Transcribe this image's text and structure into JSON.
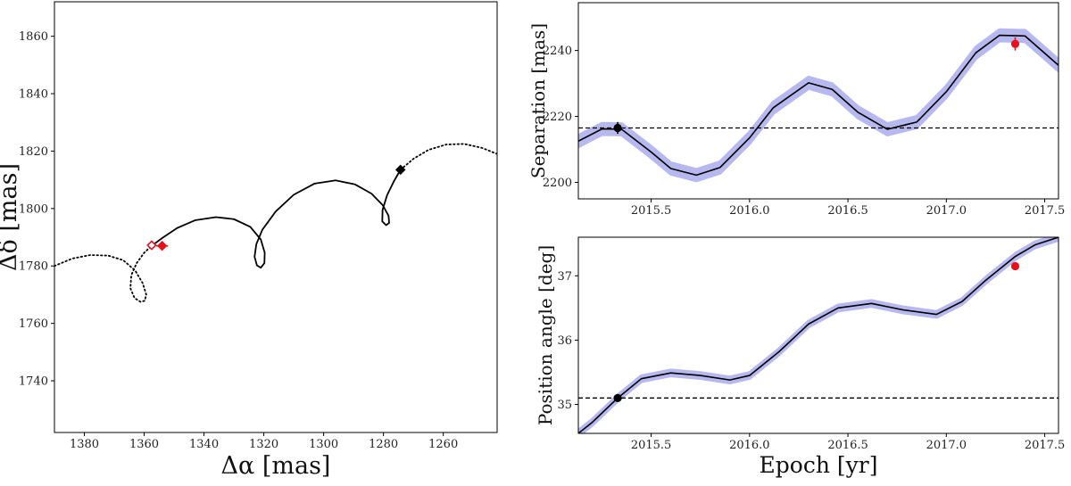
{
  "colors": {
    "obs": "#e8101a",
    "ref": "#000000",
    "band": "#b7b8ef",
    "line": "#000000"
  },
  "chart_data": [
    {
      "id": "sky",
      "type": "line",
      "title": "",
      "xlabel": "Δα [mas]",
      "ylabel": "Δδ [mas]",
      "xlim": [
        1390,
        1242
      ],
      "ylim": [
        1722,
        1872
      ],
      "xticks": [
        1380,
        1360,
        1340,
        1320,
        1300,
        1280,
        1260
      ],
      "yticks": [
        1740,
        1760,
        1780,
        1800,
        1820,
        1840,
        1860
      ],
      "series": [
        {
          "name": "past-dotted",
          "style": "dotted",
          "points": [
            [
              1390,
              1780
            ],
            [
              1384,
              1782.6
            ],
            [
              1378,
              1783.8
            ],
            [
              1372,
              1783.6
            ],
            [
              1367,
              1782
            ],
            [
              1363,
              1778.4
            ],
            [
              1360.5,
              1774
            ],
            [
              1359.3,
              1770
            ],
            [
              1359.8,
              1767.9
            ],
            [
              1361.2,
              1767.5
            ],
            [
              1363.2,
              1768.8
            ],
            [
              1364.6,
              1772.2
            ],
            [
              1364.3,
              1776.8
            ],
            [
              1362.5,
              1781
            ],
            [
              1360,
              1784.6
            ],
            [
              1357.5,
              1787
            ]
          ]
        },
        {
          "name": "fitted-orbit",
          "style": "solid",
          "points": [
            [
              1357.5,
              1787
            ],
            [
              1354,
              1789.7
            ],
            [
              1349,
              1793.2
            ],
            [
              1343,
              1795.9
            ],
            [
              1336,
              1797
            ],
            [
              1330,
              1796.3
            ],
            [
              1324.5,
              1793.6
            ],
            [
              1321,
              1789.2
            ],
            [
              1319.7,
              1784.6
            ],
            [
              1319.8,
              1781
            ],
            [
              1321,
              1779.4
            ],
            [
              1322.3,
              1780.2
            ],
            [
              1323.1,
              1783.2
            ],
            [
              1322.5,
              1787.6
            ],
            [
              1320.5,
              1792.6
            ],
            [
              1316,
              1799
            ],
            [
              1310,
              1804.8
            ],
            [
              1303,
              1808.7
            ],
            [
              1296,
              1809.8
            ],
            [
              1289.5,
              1808.4
            ],
            [
              1284,
              1805.2
            ],
            [
              1280.2,
              1801.1
            ],
            [
              1278.3,
              1797.5
            ],
            [
              1278.1,
              1795
            ],
            [
              1279.1,
              1794.2
            ],
            [
              1280.4,
              1795.5
            ],
            [
              1280.3,
              1799.5
            ],
            [
              1278.8,
              1804.6
            ],
            [
              1276.5,
              1809.5
            ],
            [
              1274.3,
              1813.5
            ]
          ]
        },
        {
          "name": "future-dotted",
          "style": "dotted",
          "points": [
            [
              1274.3,
              1813.5
            ],
            [
              1270,
              1817.3
            ],
            [
              1265,
              1820.4
            ],
            [
              1259,
              1822.3
            ],
            [
              1253,
              1822.5
            ],
            [
              1247,
              1821.1
            ],
            [
              1242,
              1819
            ]
          ]
        }
      ],
      "markers": [
        {
          "name": "red-filled",
          "x": 1354,
          "y": 1787,
          "xerr": 2,
          "yerr": 1.5,
          "color": "obs",
          "filled": true
        },
        {
          "name": "red-open",
          "x": 1357.5,
          "y": 1787.2,
          "color": "obs",
          "filled": false
        },
        {
          "name": "black-filled",
          "x": 1274.3,
          "y": 1813.5,
          "xerr": 1.5,
          "yerr": 1.5,
          "color": "ref",
          "filled": true
        }
      ]
    },
    {
      "id": "sep",
      "type": "line",
      "title": "",
      "xlabel": "",
      "ylabel": "Separation [mas]",
      "xlim": [
        2015.13,
        2017.57
      ],
      "ylim": [
        2195,
        2254.5
      ],
      "xticks": [
        "2015.5",
        "2016.0",
        "2016.5",
        "2017.0",
        "2017.5"
      ],
      "yticks": [
        2200,
        2220,
        2240
      ],
      "reference_line": 2216.5,
      "curve": [
        [
          2015.13,
          2212.5
        ],
        [
          2015.25,
          2216.2
        ],
        [
          2015.35,
          2216.1
        ],
        [
          2015.5,
          2209.2
        ],
        [
          2015.6,
          2204.2
        ],
        [
          2015.73,
          2202.2
        ],
        [
          2015.85,
          2204.5
        ],
        [
          2016.0,
          2213.5
        ],
        [
          2016.12,
          2222.6
        ],
        [
          2016.3,
          2230.2
        ],
        [
          2016.42,
          2228.2
        ],
        [
          2016.55,
          2221.3
        ],
        [
          2016.7,
          2216.1
        ],
        [
          2016.85,
          2218.3
        ],
        [
          2017.0,
          2227.5
        ],
        [
          2017.15,
          2239.3
        ],
        [
          2017.27,
          2244.6
        ],
        [
          2017.4,
          2244.4
        ],
        [
          2017.57,
          2235.5
        ]
      ],
      "band_halfwidth": 1.6,
      "points": [
        {
          "name": "ref",
          "x": 2015.33,
          "y": 2216.5,
          "xerr": 0.02,
          "yerr": 1.8,
          "color": "ref"
        },
        {
          "name": "obs",
          "x": 2017.35,
          "y": 2242,
          "yerr": 2,
          "color": "obs"
        }
      ]
    },
    {
      "id": "pa",
      "type": "line",
      "title": "",
      "xlabel": "Epoch [yr]",
      "ylabel": "Position angle [deg]",
      "xlim": [
        2015.13,
        2017.57
      ],
      "ylim": [
        34.55,
        37.6
      ],
      "xticks": [
        "2015.5",
        "2016.0",
        "2016.5",
        "2017.0",
        "2017.5"
      ],
      "yticks": [
        "35",
        "36",
        "37"
      ],
      "reference_line": 35.1,
      "curve": [
        [
          2015.13,
          34.55
        ],
        [
          2015.2,
          34.72
        ],
        [
          2015.33,
          35.1
        ],
        [
          2015.45,
          35.4
        ],
        [
          2015.6,
          35.49
        ],
        [
          2015.75,
          35.45
        ],
        [
          2015.9,
          35.38
        ],
        [
          2016.0,
          35.45
        ],
        [
          2016.15,
          35.82
        ],
        [
          2016.3,
          36.25
        ],
        [
          2016.45,
          36.5
        ],
        [
          2016.62,
          36.57
        ],
        [
          2016.78,
          36.47
        ],
        [
          2016.95,
          36.4
        ],
        [
          2017.08,
          36.6
        ],
        [
          2017.2,
          36.93
        ],
        [
          2017.35,
          37.3
        ],
        [
          2017.45,
          37.48
        ],
        [
          2017.57,
          37.6
        ]
      ],
      "band_halfwidth": 0.04,
      "points": [
        {
          "name": "ref",
          "x": 2015.33,
          "y": 35.1,
          "color": "ref"
        },
        {
          "name": "obs",
          "x": 2017.35,
          "y": 37.15,
          "color": "obs"
        }
      ]
    }
  ]
}
